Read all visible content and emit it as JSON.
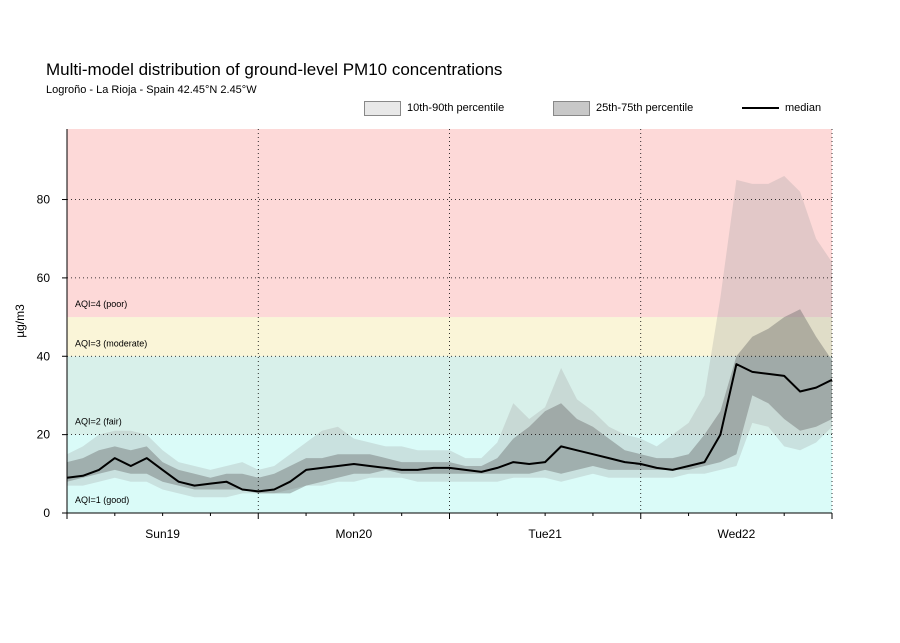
{
  "chart_data": {
    "type": "area",
    "title": "Multi-model distribution of ground-level PM10 concentrations",
    "subtitle": "Logroño - La Rioja - Spain 42.45°N 2.45°W",
    "xlabel": "",
    "ylabel": "µg/m3",
    "ylim": [
      0,
      98
    ],
    "yticks": [
      0,
      20,
      40,
      60,
      80
    ],
    "ytick_labels": [
      "0",
      "20",
      "40",
      "60",
      "80"
    ],
    "x_unit": "hours from start (2-hourly steps)",
    "xlim": [
      0,
      96
    ],
    "day_labels": [
      {
        "label": "Sun19",
        "hour": 12
      },
      {
        "label": "Mon20",
        "hour": 36
      },
      {
        "label": "Tue21",
        "hour": 60
      },
      {
        "label": "Wed22",
        "hour": 84
      }
    ],
    "day_boundaries": [
      0,
      24,
      48,
      72,
      96
    ],
    "grid": true,
    "legend": {
      "placement": "top-right",
      "items": [
        {
          "label": "10th-90th percentile",
          "kind": "band",
          "color": "#e8e8e8"
        },
        {
          "label": "25th-75th percentile",
          "kind": "band",
          "color": "#c8c8c8"
        },
        {
          "label": "median",
          "kind": "line",
          "color": "#000000"
        }
      ]
    },
    "aqi_bands": [
      {
        "label": "AQI=1 (good)",
        "from": 0,
        "to": 20,
        "color": "#dafbf8"
      },
      {
        "label": "AQI=2 (fair)",
        "from": 20,
        "to": 40,
        "color": "#d8f0ea"
      },
      {
        "label": "AQI=3 (moderate)",
        "from": 40,
        "to": 50,
        "color": "#faf5d8"
      },
      {
        "label": "AQI=4 (poor)",
        "from": 50,
        "to": 98,
        "color": "#fdd9d8"
      }
    ],
    "x": [
      0,
      2,
      4,
      6,
      8,
      10,
      12,
      14,
      16,
      18,
      20,
      22,
      24,
      26,
      28,
      30,
      32,
      34,
      36,
      38,
      40,
      42,
      44,
      46,
      48,
      50,
      52,
      54,
      56,
      58,
      60,
      62,
      64,
      66,
      68,
      70,
      72,
      74,
      76,
      78,
      80,
      82,
      84,
      86,
      88,
      90,
      92,
      94,
      96
    ],
    "series": [
      {
        "name": "p10",
        "values": [
          7,
          7,
          8,
          9,
          8,
          8,
          6,
          5,
          4,
          4,
          4,
          5,
          5,
          5,
          6,
          7,
          7,
          8,
          8,
          9,
          9,
          9,
          8,
          8,
          8,
          8,
          8,
          8,
          9,
          9,
          9,
          8,
          9,
          10,
          9,
          9,
          9,
          9,
          9,
          10,
          10,
          11,
          12,
          23,
          22,
          17,
          16,
          18,
          22
        ]
      },
      {
        "name": "p25",
        "values": [
          8,
          9,
          10,
          11,
          10,
          10,
          8,
          7,
          6,
          6,
          6,
          6,
          5,
          5,
          5,
          7,
          8,
          9,
          10,
          10,
          11,
          10,
          10,
          10,
          10,
          10,
          10,
          10,
          10,
          10,
          11,
          10,
          11,
          12,
          11,
          11,
          11,
          11,
          11,
          11,
          12,
          13,
          15,
          30,
          28,
          24,
          21,
          22,
          24
        ]
      },
      {
        "name": "median",
        "values": [
          9,
          9.5,
          11,
          14,
          12,
          14,
          11,
          8,
          7,
          7.5,
          8,
          6,
          5.5,
          6,
          8,
          11,
          11.5,
          12,
          12.5,
          12,
          11.5,
          11,
          11,
          11.5,
          11.5,
          11,
          10.5,
          11.5,
          13,
          12.5,
          13,
          17,
          16,
          15,
          14,
          13,
          12.5,
          11.5,
          11,
          12,
          13,
          20,
          38,
          36,
          35.5,
          35,
          31,
          32,
          34
        ]
      },
      {
        "name": "p75",
        "values": [
          13,
          14,
          16,
          17,
          16,
          17,
          13,
          11,
          10,
          9,
          10,
          10,
          9,
          10,
          12,
          14,
          14,
          15,
          15,
          15,
          14,
          13,
          13,
          13,
          13,
          12,
          12,
          14,
          19,
          22,
          26,
          28,
          24,
          22,
          19,
          16,
          15,
          14,
          14,
          15,
          20,
          26,
          40,
          45,
          47,
          50,
          52,
          45,
          39
        ]
      },
      {
        "name": "p90",
        "values": [
          15,
          17,
          20,
          21,
          21,
          20,
          16,
          13,
          12,
          11,
          12,
          13,
          11,
          12,
          15,
          18,
          21,
          22,
          19,
          18,
          17,
          17,
          16,
          16,
          16,
          14,
          14,
          18,
          28,
          24,
          27,
          37,
          29,
          26,
          22,
          20,
          19,
          17,
          20,
          23,
          30,
          55,
          85,
          84,
          84,
          86,
          82,
          70,
          64
        ]
      }
    ]
  }
}
